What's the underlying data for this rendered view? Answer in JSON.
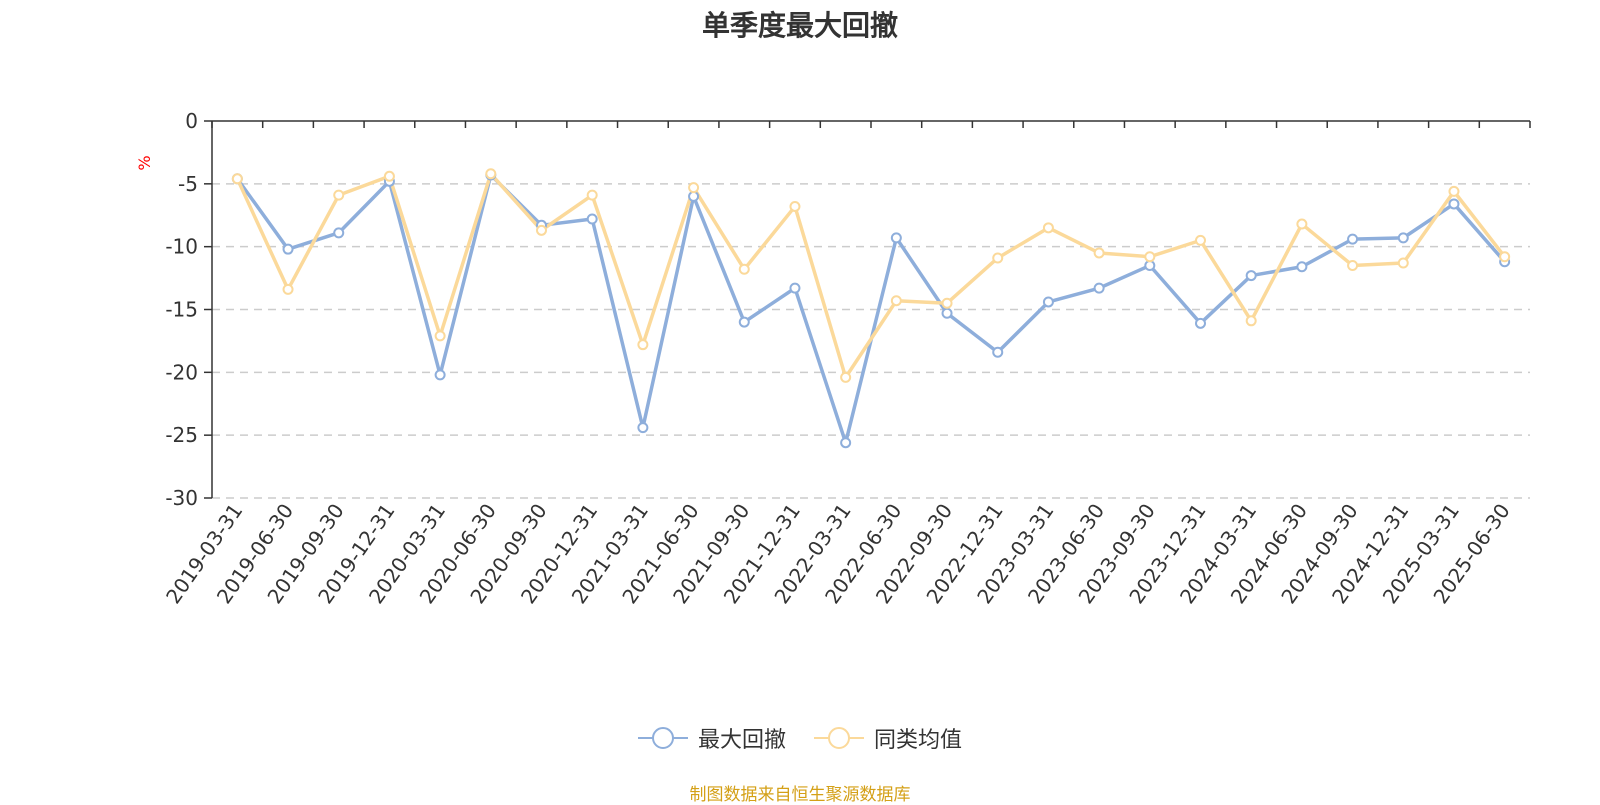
{
  "chart_data": {
    "type": "line",
    "title": "单季度最大回撤",
    "ylabel": "%",
    "ylim": [
      -30,
      0
    ],
    "yticks": [
      0,
      -5,
      -10,
      -15,
      -20,
      -25,
      -30
    ],
    "grid": "horizontal-dashed",
    "legend_position": "bottom",
    "x": [
      "2019-03-31",
      "2019-06-30",
      "2019-09-30",
      "2019-12-31",
      "2020-03-31",
      "2020-06-30",
      "2020-09-30",
      "2020-12-31",
      "2021-03-31",
      "2021-06-30",
      "2021-09-30",
      "2021-12-31",
      "2022-03-31",
      "2022-06-30",
      "2022-09-30",
      "2022-12-31",
      "2023-03-31",
      "2023-06-30",
      "2023-09-30",
      "2023-12-31",
      "2024-03-31",
      "2024-06-30",
      "2024-09-30",
      "2024-12-31",
      "2025-03-31",
      "2025-06-30"
    ],
    "series": [
      {
        "name": "最大回撤",
        "color": "#8eaedb",
        "values": [
          -4.6,
          -10.2,
          -8.9,
          -4.8,
          -20.2,
          -4.3,
          -8.3,
          -7.8,
          -24.4,
          -6.0,
          -16.0,
          -13.3,
          -25.6,
          -9.3,
          -15.3,
          -18.4,
          -14.4,
          -13.3,
          -11.5,
          -16.1,
          -12.3,
          -11.6,
          -9.4,
          -9.3,
          -6.6,
          -11.2
        ]
      },
      {
        "name": "同类均值",
        "color": "#fbd99a",
        "values": [
          -4.6,
          -13.4,
          -5.9,
          -4.4,
          -17.1,
          -4.2,
          -8.7,
          -5.9,
          -17.8,
          -5.3,
          -11.8,
          -6.8,
          -20.4,
          -14.3,
          -14.5,
          -10.9,
          -8.5,
          -10.5,
          -10.8,
          -9.5,
          -15.9,
          -8.2,
          -11.5,
          -11.3,
          -5.6,
          -10.8
        ]
      }
    ]
  },
  "footer": {
    "source": "制图数据来自恒生聚源数据库",
    "source_color": "#d4a017"
  },
  "colors": {
    "axis": "#333333",
    "grid": "#cccccc",
    "unit": "#ff0000"
  }
}
